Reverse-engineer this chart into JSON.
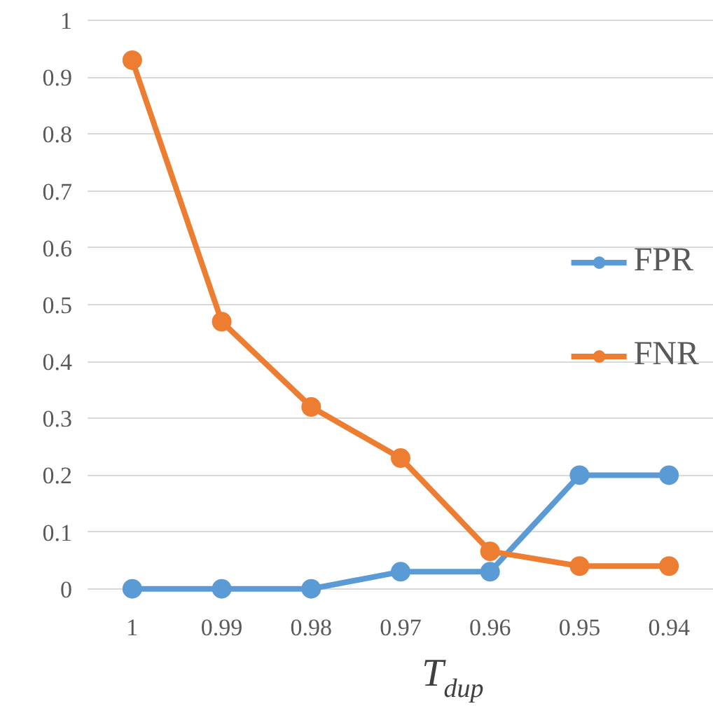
{
  "chart_data": {
    "type": "line",
    "xlabel": "T$_{dup}$",
    "categories": [
      "1",
      "0.99",
      "0.98",
      "0.97",
      "0.96",
      "0.95",
      "0.94"
    ],
    "series": [
      {
        "name": "FPR",
        "color": "#5b9bd5",
        "values": [
          0,
          0,
          0,
          0.03,
          0.03,
          0.2,
          0.2
        ]
      },
      {
        "name": "FNR",
        "color": "#ed7d31",
        "values": [
          0.93,
          0.47,
          0.32,
          0.23,
          0.066,
          0.04,
          0.04
        ]
      }
    ],
    "ylim": [
      0,
      1
    ],
    "yticks": [
      0,
      0.1,
      0.2,
      0.3,
      0.4,
      0.5,
      0.6,
      0.7,
      0.8,
      0.9,
      1
    ],
    "grid": "y",
    "legend": "right",
    "marker": "circle",
    "line_style": "solid"
  }
}
